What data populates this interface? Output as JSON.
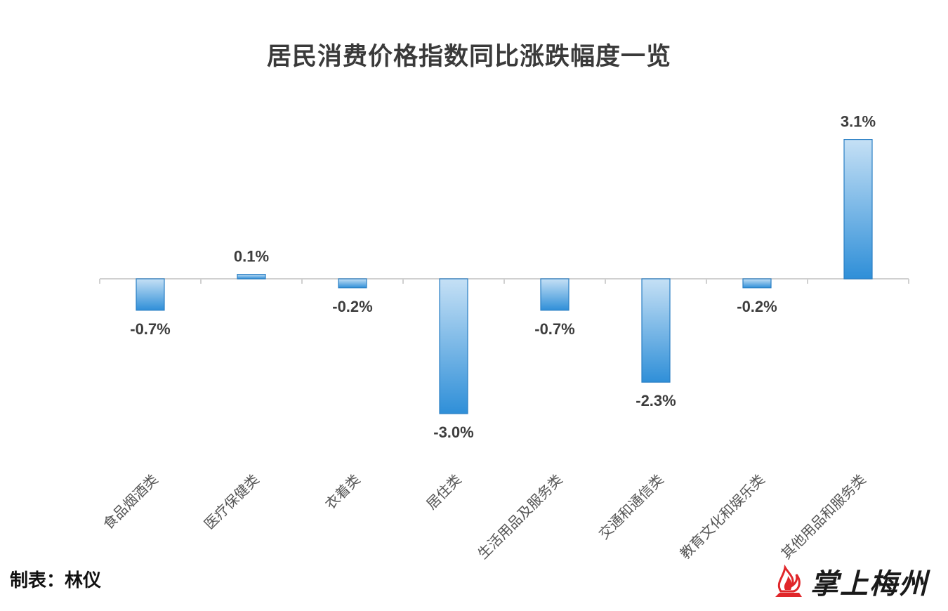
{
  "chart_data": {
    "type": "bar",
    "title": "居民消费价格指数同比涨跌幅度一览",
    "categories": [
      "食品烟酒类",
      "医疗保健类",
      "衣着类",
      "居住类",
      "生活用品及服务类",
      "交通和通信类",
      "教育文化和娱乐类",
      "其他用品和服务类"
    ],
    "values": [
      -0.7,
      0.1,
      -0.2,
      -3.0,
      -0.7,
      -2.3,
      -0.2,
      3.1
    ],
    "data_labels": [
      "-0.7%",
      "0.1%",
      "-0.2%",
      "-3.0%",
      "-0.7%",
      "-2.3%",
      "-0.2%",
      "3.1%"
    ],
    "ylim": [
      -3.0,
      3.1
    ],
    "grid": false,
    "colors": {
      "bar_dark": "#2f8fd8",
      "bar_light": "#c5e0f5",
      "bar_edge": "#2a7fc4",
      "axis": "#d0d0d0"
    }
  },
  "credit": "制表：林仪",
  "logo": {
    "text": "掌上梅州",
    "icon": "flame-logo-icon",
    "color": "#e0262a"
  }
}
